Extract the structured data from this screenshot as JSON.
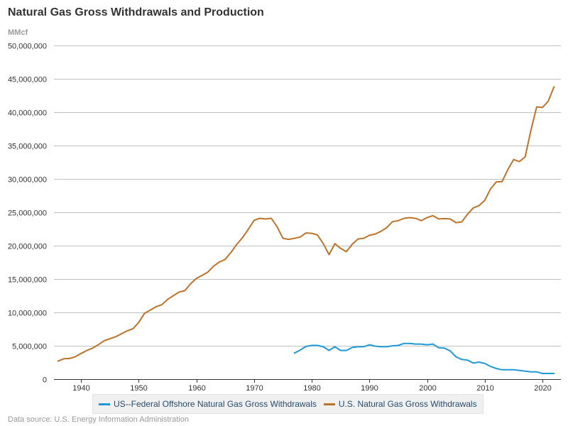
{
  "header": {
    "title": "Natural Gas Gross Withdrawals and Production",
    "units": "MMcf"
  },
  "footer": {
    "source": "Data source: U.S. Energy Information Administration"
  },
  "chart_data": {
    "type": "line",
    "title": "Natural Gas Gross Withdrawals and Production",
    "xlabel": "",
    "ylabel": "MMcf",
    "ylim": [
      0,
      50000000
    ],
    "xlim": [
      1935.3,
      2023.2
    ],
    "grid": true,
    "legend_position": "bottom-center",
    "y_ticks": [
      0,
      5000000,
      10000000,
      15000000,
      20000000,
      25000000,
      30000000,
      35000000,
      40000000,
      45000000,
      50000000
    ],
    "y_tick_labels": [
      "0",
      "5,000,000",
      "10,000,000",
      "15,000,000",
      "20,000,000",
      "25,000,000",
      "30,000,000",
      "35,000,000",
      "40,000,000",
      "45,000,000",
      "50,000,000"
    ],
    "x_ticks": [
      1940,
      1950,
      1960,
      1970,
      1980,
      1990,
      2000,
      2010,
      2020
    ],
    "x_tick_labels": [
      "1940",
      "1950",
      "1960",
      "1970",
      "1980",
      "1990",
      "2000",
      "2010",
      "2020"
    ],
    "series": [
      {
        "name": "US--Federal Offshore Natural Gas Gross Withdrawals",
        "color": "#1f9ad6",
        "x": [
          1977,
          1978,
          1979,
          1980,
          1981,
          1982,
          1983,
          1984,
          1985,
          1986,
          1987,
          1988,
          1989,
          1990,
          1991,
          1992,
          1993,
          1994,
          1995,
          1996,
          1997,
          1998,
          1999,
          2000,
          2001,
          2002,
          2003,
          2004,
          2005,
          2006,
          2007,
          2008,
          2009,
          2010,
          2011,
          2012,
          2013,
          2014,
          2015,
          2016,
          2017,
          2018,
          2019,
          2020,
          2021,
          2022
        ],
        "values": [
          3900000,
          4350000,
          4900000,
          5050000,
          5050000,
          4850000,
          4300000,
          4850000,
          4300000,
          4300000,
          4750000,
          4850000,
          4850000,
          5150000,
          4950000,
          4850000,
          4850000,
          5000000,
          5050000,
          5350000,
          5350000,
          5250000,
          5250000,
          5150000,
          5250000,
          4700000,
          4650000,
          4250000,
          3350000,
          2950000,
          2850000,
          2400000,
          2550000,
          2350000,
          1900000,
          1600000,
          1400000,
          1400000,
          1400000,
          1300000,
          1200000,
          1100000,
          1100000,
          850000,
          850000,
          850000
        ]
      },
      {
        "name": "U.S. Natural Gas Gross Withdrawals",
        "color": "#bd732a",
        "x": [
          1936,
          1937,
          1938,
          1939,
          1940,
          1941,
          1942,
          1943,
          1944,
          1945,
          1946,
          1947,
          1948,
          1949,
          1950,
          1951,
          1952,
          1953,
          1954,
          1955,
          1956,
          1957,
          1958,
          1959,
          1960,
          1961,
          1962,
          1963,
          1964,
          1965,
          1966,
          1967,
          1968,
          1969,
          1970,
          1971,
          1972,
          1973,
          1974,
          1975,
          1976,
          1977,
          1978,
          1979,
          1980,
          1981,
          1982,
          1983,
          1984,
          1985,
          1986,
          1987,
          1988,
          1989,
          1990,
          1991,
          1992,
          1993,
          1994,
          1995,
          1996,
          1997,
          1998,
          1999,
          2000,
          2001,
          2002,
          2003,
          2004,
          2005,
          2006,
          2007,
          2008,
          2009,
          2010,
          2011,
          2012,
          2013,
          2014,
          2015,
          2016,
          2017,
          2018,
          2019,
          2020,
          2021,
          2022
        ],
        "values": [
          2700000,
          3050000,
          3100000,
          3350000,
          3850000,
          4300000,
          4650000,
          5150000,
          5750000,
          6050000,
          6350000,
          6800000,
          7250000,
          7550000,
          8500000,
          9850000,
          10350000,
          10850000,
          11150000,
          11950000,
          12500000,
          13050000,
          13250000,
          14300000,
          15100000,
          15550000,
          16050000,
          16950000,
          17550000,
          17950000,
          19000000,
          20200000,
          21200000,
          22450000,
          23800000,
          24100000,
          24000000,
          24100000,
          22800000,
          21100000,
          20950000,
          21100000,
          21300000,
          21900000,
          21850000,
          21600000,
          20300000,
          18650000,
          20300000,
          19600000,
          19100000,
          20200000,
          21000000,
          21100000,
          21550000,
          21750000,
          22150000,
          22700000,
          23600000,
          23750000,
          24100000,
          24200000,
          24100000,
          23750000,
          24200000,
          24500000,
          24000000,
          24050000,
          24000000,
          23450000,
          23550000,
          24700000,
          25650000,
          26000000,
          26800000,
          28500000,
          29550000,
          29600000,
          31400000,
          32900000,
          32600000,
          33300000,
          37300000,
          40800000,
          40700000,
          41650000,
          43800000
        ]
      }
    ]
  }
}
